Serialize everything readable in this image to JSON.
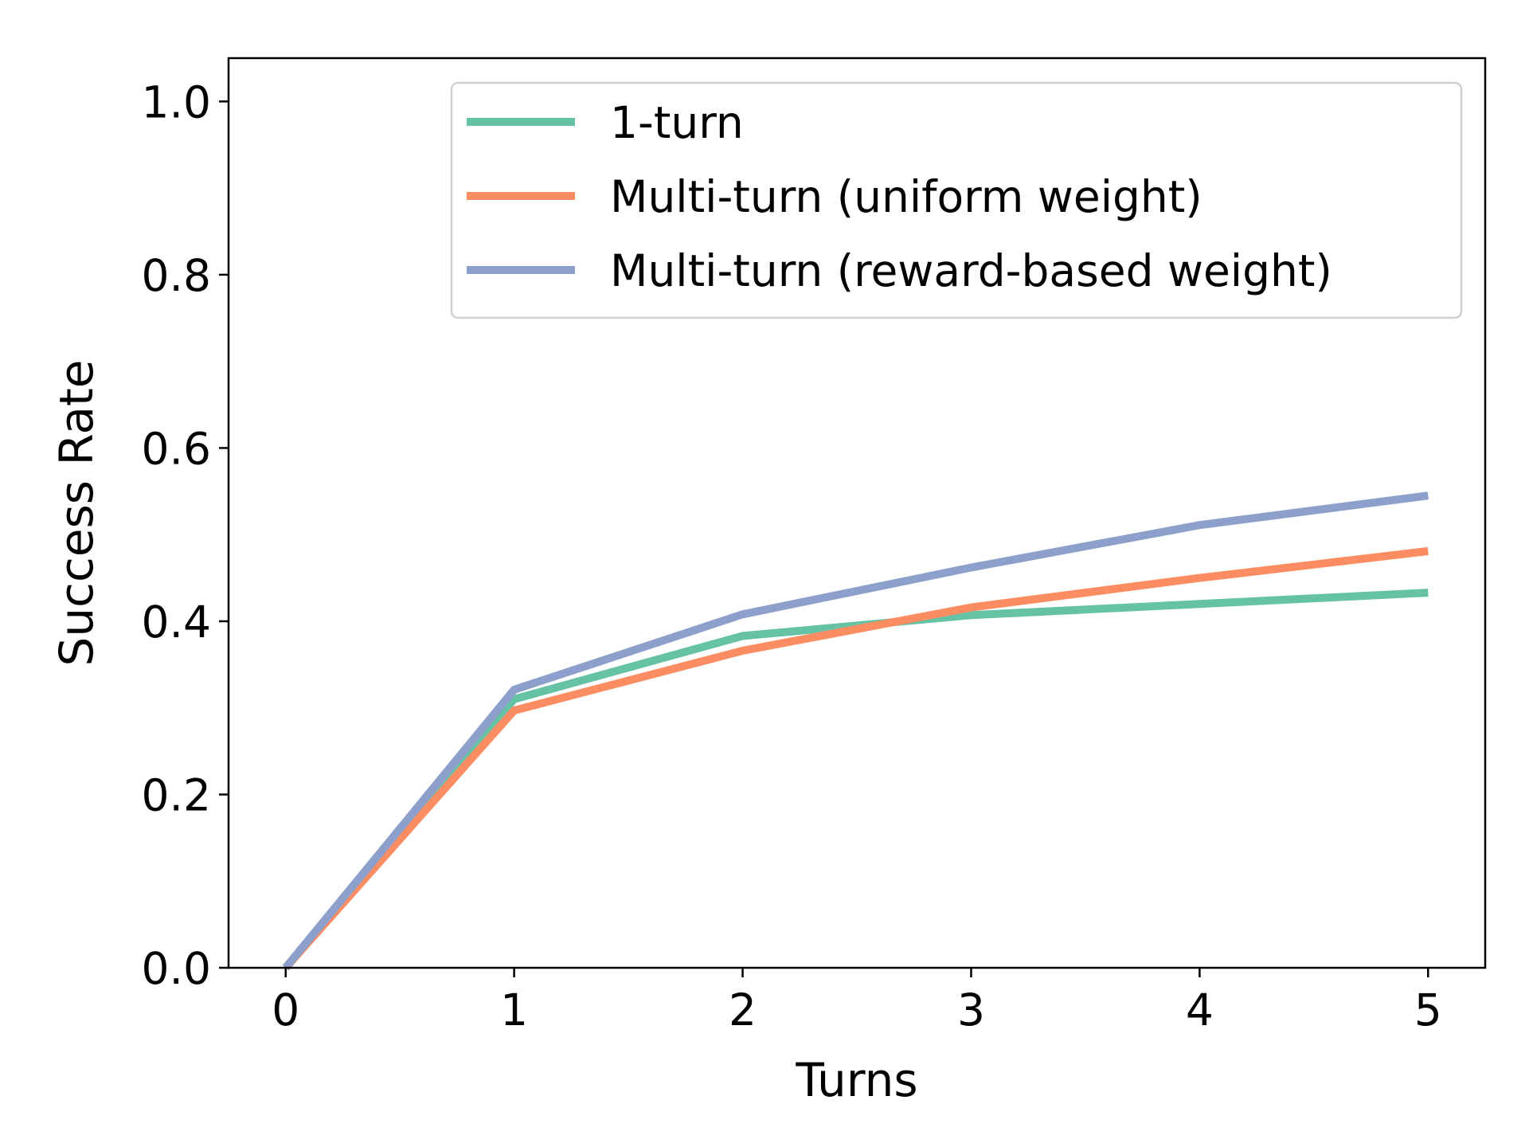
{
  "chart_data": {
    "type": "line",
    "title": "",
    "xlabel": "Turns",
    "ylabel": "Success Rate",
    "x": [
      0,
      1,
      2,
      3,
      4,
      5
    ],
    "xlim": [
      -0.25,
      5.25
    ],
    "ylim": [
      0.0,
      1.05
    ],
    "xticks": [
      0,
      1,
      2,
      3,
      4,
      5
    ],
    "xtick_labels": [
      "0",
      "1",
      "2",
      "3",
      "4",
      "5"
    ],
    "yticks": [
      0.0,
      0.2,
      0.4,
      0.6,
      0.8,
      1.0
    ],
    "ytick_labels": [
      "0.0",
      "0.2",
      "0.4",
      "0.6",
      "0.8",
      "1.0"
    ],
    "grid": false,
    "legend_position": "top-right",
    "series": [
      {
        "name": "1-turn",
        "color": "#66c2a5",
        "values": [
          0.0,
          0.31,
          0.383,
          0.407,
          0.42,
          0.433
        ]
      },
      {
        "name": "Multi-turn (uniform weight)",
        "color": "#fc8d62",
        "values": [
          0.0,
          0.297,
          0.366,
          0.416,
          0.45,
          0.481
        ]
      },
      {
        "name": "Multi-turn (reward-based weight)",
        "color": "#8da0cb",
        "values": [
          0.0,
          0.321,
          0.408,
          0.462,
          0.511,
          0.545
        ]
      }
    ]
  }
}
